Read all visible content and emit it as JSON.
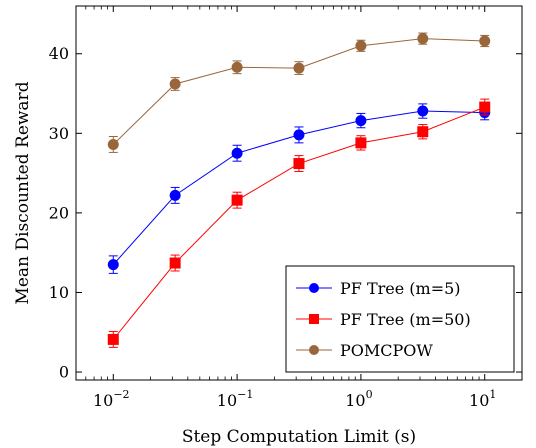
{
  "chart_data": {
    "type": "line",
    "title": "",
    "xlabel": "Step Computation Limit (s)",
    "ylabel": "Mean Discounted Reward",
    "x_scale": "log",
    "xlim": [
      0.005,
      20
    ],
    "ylim": [
      -1,
      46
    ],
    "grid": false,
    "legend_position": "bottom-right",
    "x_ticks": [
      {
        "value": 0.01,
        "base": "10",
        "exp": "−2"
      },
      {
        "value": 0.1,
        "base": "10",
        "exp": "−1"
      },
      {
        "value": 1,
        "base": "10",
        "exp": "0"
      },
      {
        "value": 10,
        "base": "10",
        "exp": "1"
      }
    ],
    "y_ticks": [
      {
        "value": 0,
        "label": "0"
      },
      {
        "value": 10,
        "label": "10"
      },
      {
        "value": 20,
        "label": "20"
      },
      {
        "value": 30,
        "label": "30"
      },
      {
        "value": 40,
        "label": "40"
      }
    ],
    "x": [
      0.01,
      0.0316,
      0.1,
      0.316,
      1,
      3.16,
      10
    ],
    "series": [
      {
        "name": "PF Tree (m=5)",
        "color": "#0000ff",
        "marker": "circle",
        "values": [
          13.5,
          22.2,
          27.5,
          29.8,
          31.6,
          32.8,
          32.6
        ],
        "errors": [
          1.1,
          1.0,
          1.0,
          1.0,
          0.9,
          0.9,
          0.9
        ]
      },
      {
        "name": "PF Tree (m=50)",
        "color": "#ff0000",
        "marker": "square",
        "values": [
          4.1,
          13.7,
          21.6,
          26.2,
          28.8,
          30.2,
          33.3
        ],
        "errors": [
          1.0,
          1.0,
          1.0,
          1.0,
          0.9,
          0.9,
          1.0
        ]
      },
      {
        "name": "POMCPOW",
        "color": "#99663b",
        "marker": "circle",
        "values": [
          28.6,
          36.2,
          38.3,
          38.2,
          41.0,
          41.9,
          41.6
        ],
        "errors": [
          1.0,
          0.8,
          0.8,
          0.8,
          0.7,
          0.7,
          0.7
        ]
      }
    ]
  }
}
